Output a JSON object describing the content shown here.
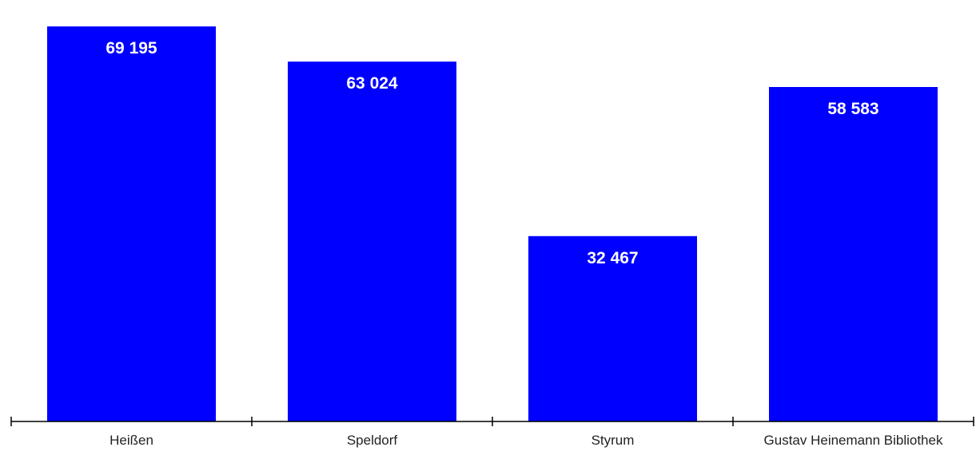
{
  "chart_data": {
    "type": "bar",
    "categories": [
      "Heißen",
      "Speldorf",
      "Styrum",
      "Gustav Heinemann Bibliothek"
    ],
    "values": [
      69195,
      63024,
      32467,
      58583
    ],
    "data_labels": [
      "69 195",
      "63 024",
      "32 467",
      "58 583"
    ],
    "title": "",
    "xlabel": "",
    "ylabel": "",
    "ylim": [
      0,
      72000
    ],
    "grid": false,
    "legend": "none",
    "bar_color": "#0000ff",
    "label_color": "#ffffff",
    "axis_color": "#000000"
  }
}
